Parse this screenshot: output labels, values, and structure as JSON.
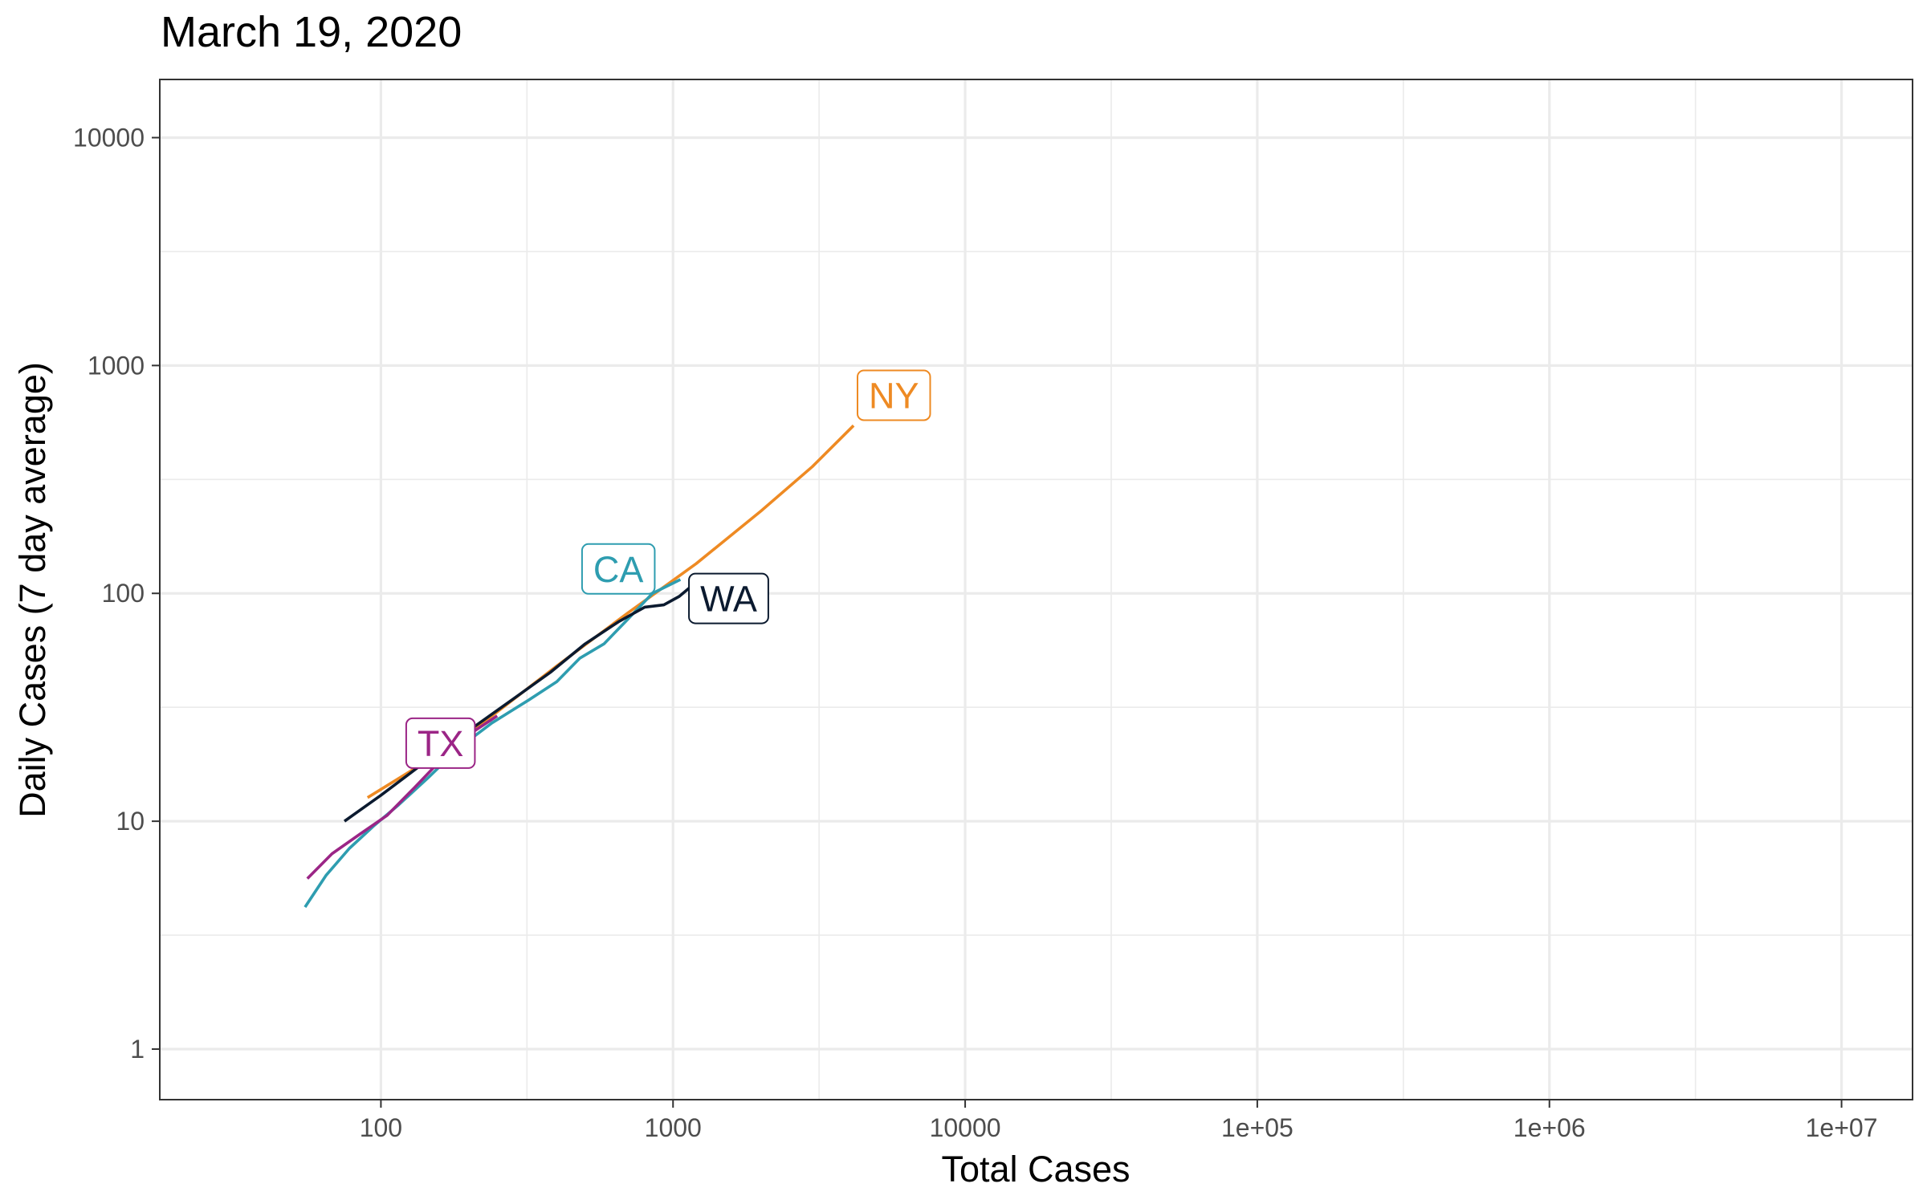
{
  "chart_data": {
    "type": "line",
    "title": "March 19, 2020",
    "xlabel": "Total Cases",
    "ylabel": "Daily Cases (7 day average)",
    "x_scale": "log10",
    "y_scale": "log10",
    "xlim": [
      17.5,
      17500000
    ],
    "ylim": [
      0.6,
      18000
    ],
    "x_ticks": [
      {
        "value": 100,
        "label": "100"
      },
      {
        "value": 1000,
        "label": "1000"
      },
      {
        "value": 10000,
        "label": "10000"
      },
      {
        "value": 100000,
        "label": "1e+05"
      },
      {
        "value": 1000000,
        "label": "1e+06"
      },
      {
        "value": 10000000,
        "label": "1e+07"
      }
    ],
    "y_ticks": [
      {
        "value": 1,
        "label": "1"
      },
      {
        "value": 10,
        "label": "10"
      },
      {
        "value": 100,
        "label": "100"
      },
      {
        "value": 1000,
        "label": "1000"
      },
      {
        "value": 10000,
        "label": "10000"
      }
    ],
    "grid": true,
    "legend": "none (direct labels)",
    "series": [
      {
        "name": "NY",
        "color": "#EE8A23",
        "points": [
          [
            90,
            12.7
          ],
          [
            150,
            19
          ],
          [
            240,
            29
          ],
          [
            400,
            48
          ],
          [
            700,
            82
          ],
          [
            1200,
            135
          ],
          [
            2000,
            230
          ],
          [
            3000,
            360
          ],
          [
            4150,
            545
          ]
        ],
        "label_at": [
          5700,
          740
        ]
      },
      {
        "name": "CA",
        "color": "#2E9DB0",
        "points": [
          [
            55,
            4.2
          ],
          [
            65,
            5.8
          ],
          [
            78,
            7.6
          ],
          [
            95,
            9.6
          ],
          [
            115,
            11.8
          ],
          [
            145,
            15.5
          ],
          [
            185,
            21
          ],
          [
            240,
            27
          ],
          [
            320,
            34
          ],
          [
            400,
            41
          ],
          [
            480,
            52
          ],
          [
            580,
            60
          ],
          [
            700,
            77
          ],
          [
            850,
            100
          ],
          [
            1060,
            115
          ]
        ],
        "label_at": [
          650,
          128
        ]
      },
      {
        "name": "WA",
        "color": "#0B1A2F",
        "points": [
          [
            75,
            10
          ],
          [
            100,
            13
          ],
          [
            140,
            18
          ],
          [
            200,
            25
          ],
          [
            280,
            34
          ],
          [
            380,
            45
          ],
          [
            500,
            60
          ],
          [
            650,
            75
          ],
          [
            800,
            87
          ],
          [
            930,
            89
          ],
          [
            1050,
            97
          ],
          [
            1220,
            114
          ]
        ],
        "label_at": [
          1550,
          95
        ]
      },
      {
        "name": "TX",
        "color": "#9B2586",
        "points": [
          [
            56,
            5.6
          ],
          [
            68,
            7.2
          ],
          [
            85,
            8.8
          ],
          [
            105,
            10.6
          ],
          [
            130,
            14
          ],
          [
            160,
            18.5
          ],
          [
            200,
            24
          ],
          [
            250,
            29
          ]
        ],
        "label_at": [
          160,
          22
        ]
      }
    ]
  }
}
